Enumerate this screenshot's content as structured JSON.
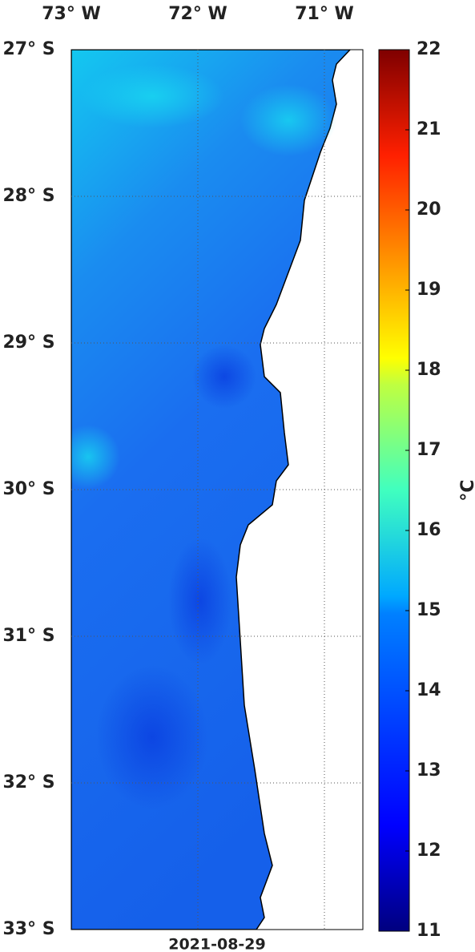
{
  "map": {
    "longitude_labels": [
      "73° W",
      "72° W",
      "71° W"
    ],
    "latitude_labels": [
      "27° S",
      "28° S",
      "29° S",
      "30° S",
      "31° S",
      "32° S",
      "33° S"
    ],
    "date": "2021-08-29"
  },
  "colorbar": {
    "range": [
      11,
      22
    ],
    "ticks": [
      11,
      12,
      13,
      14,
      15,
      16,
      17,
      18,
      19,
      20,
      21,
      22
    ],
    "unit": "°C"
  }
}
